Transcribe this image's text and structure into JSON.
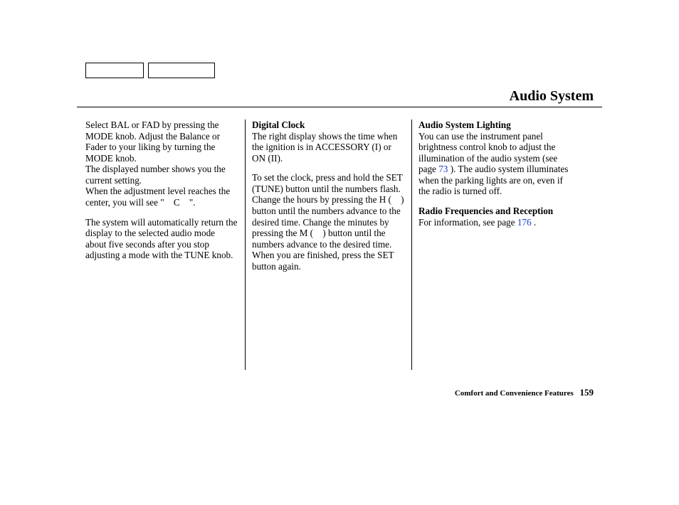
{
  "header": {
    "title": "Audio System"
  },
  "col1": {
    "p1": "Select BAL or FAD by pressing the MODE knob. Adjust the Balance or Fader to your liking by turning the MODE knob.",
    "p2": "The displayed number shows you the current setting.",
    "p3": "When the adjustment level reaches the center, you will see \" C \".",
    "p4": "The system will automatically return the display to the selected audio mode about five seconds after you stop adjusting a mode with the TUNE knob."
  },
  "col2": {
    "h1": "Digital Clock",
    "p1": "The right display shows the time when the ignition is in ACCESSORY (I) or ON (II).",
    "p2": "To set the clock, press and hold the SET (TUNE) button until the numbers flash. Change the hours by pressing the H ( ) button until the numbers advance to the desired time. Change the minutes by pressing the M ( ) button until the numbers advance to the desired time. When you are finished, press the SET button again."
  },
  "col3": {
    "h1": "Audio System Lighting",
    "p1a": "You can use the instrument panel brightness control knob to adjust the illumination of the audio system (see page ",
    "link1": "73",
    "p1b": " ). The audio system illuminates when the parking lights are on, even if the radio is turned off.",
    "h2": "Radio Frequencies and Reception",
    "p2a": "For information, see page ",
    "link2": "176",
    "p2b": " ."
  },
  "footer": {
    "label": "Comfort and Convenience Features",
    "page": "159"
  }
}
